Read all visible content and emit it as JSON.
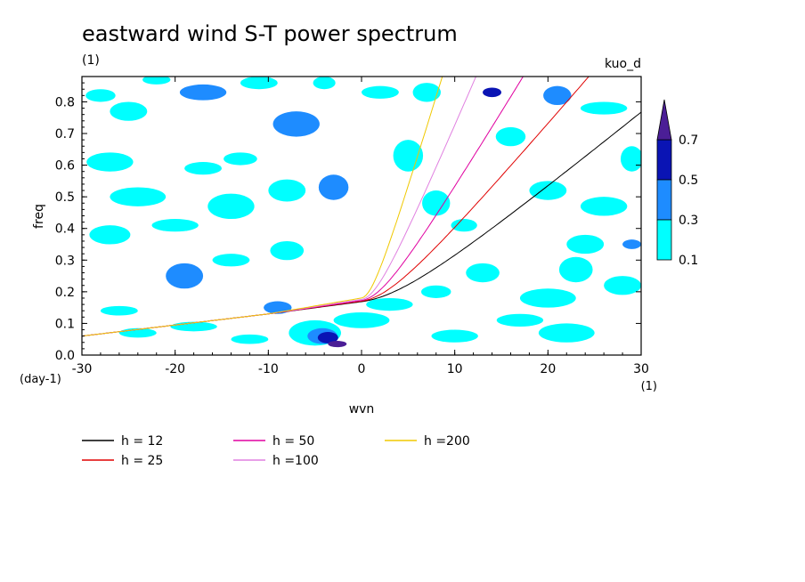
{
  "chart_data": {
    "type": "heatmap",
    "title": "eastward wind S-T power spectrum",
    "subtitle": "(1)",
    "corner_label": "kuo_d",
    "xlabel": "wvn",
    "ylabel": "freq",
    "x_unit": "(1)",
    "y_unit": "(day-1)",
    "xlim": [
      -30,
      30
    ],
    "ylim": [
      0,
      0.88
    ],
    "x_ticks": [
      -30,
      -20,
      -10,
      0,
      10,
      20,
      30
    ],
    "y_ticks": [
      0.0,
      0.1,
      0.2,
      0.3,
      0.4,
      0.5,
      0.6,
      0.7,
      0.8
    ],
    "x_tick_labels": [
      "-30",
      "-20",
      "-10",
      "0",
      "10",
      "20",
      "30"
    ],
    "y_tick_labels": [
      "0.0",
      "0.1",
      "0.2",
      "0.3",
      "0.4",
      "0.5",
      "0.6",
      "0.7",
      "0.8"
    ],
    "colorbar": {
      "levels": [
        0.1,
        0.3,
        0.5,
        0.7
      ],
      "labels": [
        "0.1",
        "0.3",
        "0.5",
        "0.7"
      ],
      "colors": [
        "#00ffff",
        "#1e8cff",
        "#0a14b4",
        "#4b1e96"
      ]
    },
    "patches": [
      {
        "x": -28,
        "y": 0.82,
        "rx": 1.6,
        "ry": 0.02,
        "level": 0
      },
      {
        "x": -25,
        "y": 0.77,
        "rx": 2.0,
        "ry": 0.03,
        "level": 0
      },
      {
        "x": -22,
        "y": 0.87,
        "rx": 1.5,
        "ry": 0.015,
        "level": 0
      },
      {
        "x": -17,
        "y": 0.83,
        "rx": 2.5,
        "ry": 0.025,
        "level": 1
      },
      {
        "x": -11,
        "y": 0.86,
        "rx": 2.0,
        "ry": 0.02,
        "level": 0
      },
      {
        "x": -7,
        "y": 0.73,
        "rx": 2.5,
        "ry": 0.04,
        "level": 1
      },
      {
        "x": -4,
        "y": 0.86,
        "rx": 1.2,
        "ry": 0.02,
        "level": 0
      },
      {
        "x": -27,
        "y": 0.61,
        "rx": 2.5,
        "ry": 0.03,
        "level": 0
      },
      {
        "x": -24,
        "y": 0.5,
        "rx": 3.0,
        "ry": 0.03,
        "level": 0
      },
      {
        "x": -17,
        "y": 0.59,
        "rx": 2.0,
        "ry": 0.02,
        "level": 0
      },
      {
        "x": -13,
        "y": 0.62,
        "rx": 1.8,
        "ry": 0.02,
        "level": 0
      },
      {
        "x": -14,
        "y": 0.47,
        "rx": 2.5,
        "ry": 0.04,
        "level": 0
      },
      {
        "x": -8,
        "y": 0.52,
        "rx": 2.0,
        "ry": 0.035,
        "level": 0
      },
      {
        "x": -3,
        "y": 0.53,
        "rx": 1.6,
        "ry": 0.04,
        "level": 1
      },
      {
        "x": -27,
        "y": 0.38,
        "rx": 2.2,
        "ry": 0.03,
        "level": 0
      },
      {
        "x": -20,
        "y": 0.41,
        "rx": 2.5,
        "ry": 0.02,
        "level": 0
      },
      {
        "x": -19,
        "y": 0.25,
        "rx": 2.0,
        "ry": 0.04,
        "level": 1
      },
      {
        "x": -14,
        "y": 0.3,
        "rx": 2.0,
        "ry": 0.02,
        "level": 0
      },
      {
        "x": -8,
        "y": 0.33,
        "rx": 1.8,
        "ry": 0.03,
        "level": 0
      },
      {
        "x": -26,
        "y": 0.14,
        "rx": 2.0,
        "ry": 0.015,
        "level": 0
      },
      {
        "x": -18,
        "y": 0.09,
        "rx": 2.5,
        "ry": 0.015,
        "level": 0
      },
      {
        "x": -24,
        "y": 0.07,
        "rx": 2.0,
        "ry": 0.015,
        "level": 0
      },
      {
        "x": -12,
        "y": 0.05,
        "rx": 2.0,
        "ry": 0.015,
        "level": 0
      },
      {
        "x": -5,
        "y": 0.07,
        "rx": 2.8,
        "ry": 0.04,
        "level": 0
      },
      {
        "x": -4.2,
        "y": 0.06,
        "rx": 1.6,
        "ry": 0.025,
        "level": 1
      },
      {
        "x": -3.6,
        "y": 0.055,
        "rx": 1.1,
        "ry": 0.018,
        "level": 2
      },
      {
        "x": -2.6,
        "y": 0.035,
        "rx": 1.0,
        "ry": 0.01,
        "level": 3
      },
      {
        "x": -9,
        "y": 0.15,
        "rx": 1.5,
        "ry": 0.02,
        "level": 1
      },
      {
        "x": 2,
        "y": 0.83,
        "rx": 2.0,
        "ry": 0.02,
        "level": 0
      },
      {
        "x": 7,
        "y": 0.83,
        "rx": 1.5,
        "ry": 0.03,
        "level": 0
      },
      {
        "x": 14,
        "y": 0.83,
        "rx": 1.0,
        "ry": 0.015,
        "level": 2
      },
      {
        "x": 21,
        "y": 0.82,
        "rx": 1.5,
        "ry": 0.03,
        "level": 1
      },
      {
        "x": 26,
        "y": 0.78,
        "rx": 2.5,
        "ry": 0.02,
        "level": 0
      },
      {
        "x": 16,
        "y": 0.69,
        "rx": 1.6,
        "ry": 0.03,
        "level": 0
      },
      {
        "x": 29,
        "y": 0.62,
        "rx": 1.2,
        "ry": 0.04,
        "level": 0
      },
      {
        "x": 5,
        "y": 0.63,
        "rx": 1.6,
        "ry": 0.05,
        "level": 0
      },
      {
        "x": 8,
        "y": 0.48,
        "rx": 1.5,
        "ry": 0.04,
        "level": 0
      },
      {
        "x": 11,
        "y": 0.41,
        "rx": 1.4,
        "ry": 0.02,
        "level": 0
      },
      {
        "x": 20,
        "y": 0.52,
        "rx": 2.0,
        "ry": 0.03,
        "level": 0
      },
      {
        "x": 26,
        "y": 0.47,
        "rx": 2.5,
        "ry": 0.03,
        "level": 0
      },
      {
        "x": 24,
        "y": 0.35,
        "rx": 2.0,
        "ry": 0.03,
        "level": 0
      },
      {
        "x": 29,
        "y": 0.35,
        "rx": 1.0,
        "ry": 0.015,
        "level": 1
      },
      {
        "x": 23,
        "y": 0.27,
        "rx": 1.8,
        "ry": 0.04,
        "level": 0
      },
      {
        "x": 28,
        "y": 0.22,
        "rx": 2.0,
        "ry": 0.03,
        "level": 0
      },
      {
        "x": 20,
        "y": 0.18,
        "rx": 3.0,
        "ry": 0.03,
        "level": 0
      },
      {
        "x": 22,
        "y": 0.07,
        "rx": 3.0,
        "ry": 0.03,
        "level": 0
      },
      {
        "x": 17,
        "y": 0.11,
        "rx": 2.5,
        "ry": 0.02,
        "level": 0
      },
      {
        "x": 13,
        "y": 0.26,
        "rx": 1.8,
        "ry": 0.03,
        "level": 0
      },
      {
        "x": 8,
        "y": 0.2,
        "rx": 1.6,
        "ry": 0.02,
        "level": 0
      },
      {
        "x": 3,
        "y": 0.16,
        "rx": 2.5,
        "ry": 0.02,
        "level": 0
      },
      {
        "x": 0,
        "y": 0.11,
        "rx": 3.0,
        "ry": 0.025,
        "level": 0
      },
      {
        "x": 10,
        "y": 0.06,
        "rx": 2.5,
        "ry": 0.02,
        "level": 0
      }
    ],
    "series": [
      {
        "name": "h = 12",
        "h": 12,
        "color": "#000000"
      },
      {
        "name": "h = 25",
        "h": 25,
        "color": "#e00000"
      },
      {
        "name": "h = 50",
        "h": 50,
        "color": "#e000a0"
      },
      {
        "name": "h =100",
        "h": 100,
        "color": "#e080e0"
      },
      {
        "name": "h =200",
        "h": 200,
        "color": "#f0c800"
      }
    ]
  }
}
